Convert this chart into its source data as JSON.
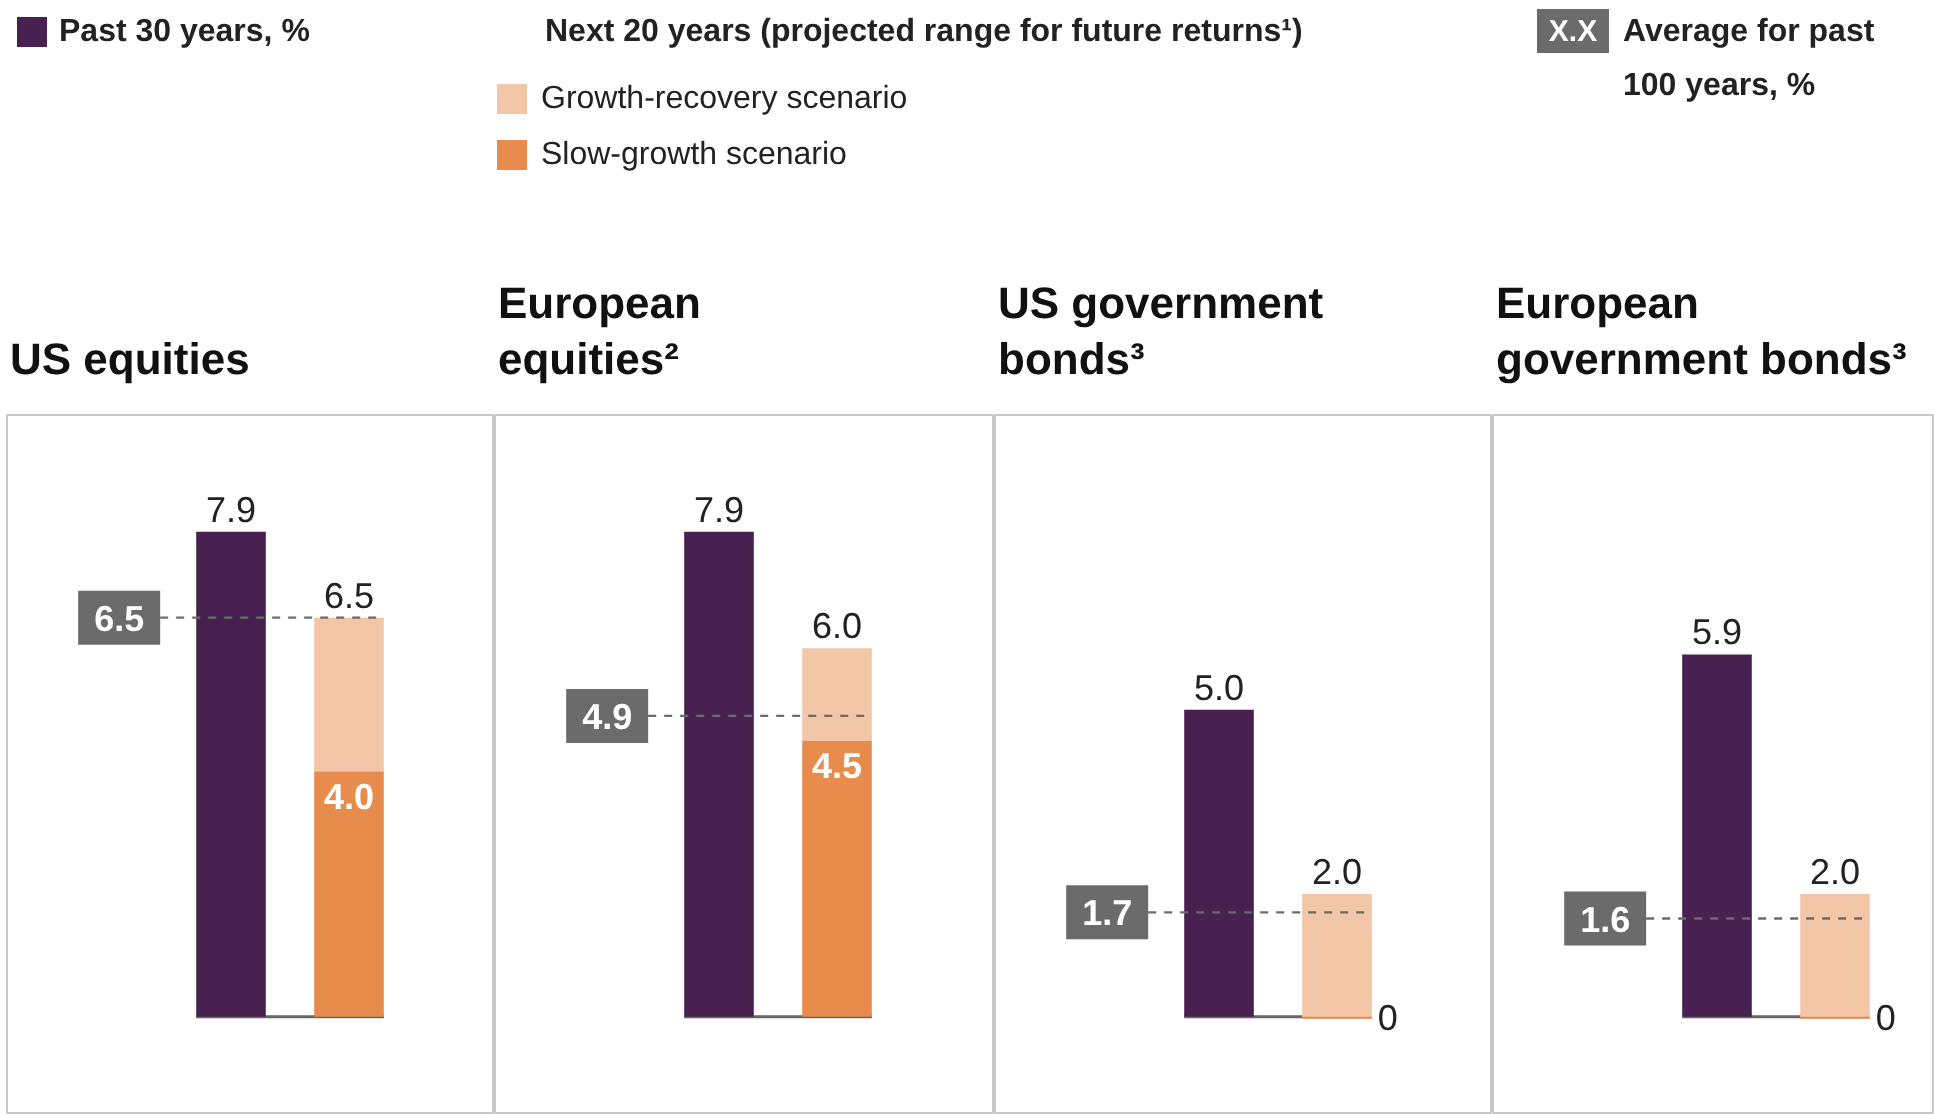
{
  "chart_data": [
    {
      "type": "bar",
      "title": "US equities",
      "categories": [
        null,
        null
      ],
      "stacked": true,
      "series": [
        {
          "name": "Past 30 years, %",
          "color": "#482151",
          "values": [
            7.9,
            null
          ],
          "value_labels": [
            "7.9",
            null
          ]
        },
        {
          "name": "Slow-growth scenario",
          "color": "#e88c4e",
          "values": [
            null,
            4.0
          ],
          "value_labels": [
            null,
            "4.0"
          ]
        },
        {
          "name": "Growth-recovery scenario",
          "color": "#f4c6a8",
          "values": [
            null,
            2.5
          ]
        }
      ],
      "totals": [
        null,
        "6.5"
      ],
      "ylim": [
        -1.6,
        9.8
      ],
      "tick_labels": false,
      "ref_lines": [
        {
          "axis": "y",
          "value": 6.5,
          "label": "6.5",
          "color": "#6b6b6b",
          "line_style": "dashed"
        }
      ],
      "legend": "top",
      "legend_title": "Next 20 years (projected range for future returns¹)",
      "annotations": [
        "X.X",
        "Average for past 100 years, %"
      ]
    },
    {
      "type": "bar",
      "title": "European equities²",
      "categories": [
        null,
        null
      ],
      "stacked": true,
      "series": [
        {
          "color": "#482151",
          "values": [
            7.9,
            null
          ],
          "value_labels": [
            "7.9",
            null
          ]
        },
        {
          "color": "#e88c4e",
          "values": [
            null,
            4.5
          ],
          "value_labels": [
            null,
            "4.5"
          ]
        },
        {
          "color": "#f4c6a8",
          "values": [
            null,
            1.5
          ]
        }
      ],
      "totals": [
        null,
        "6.0"
      ],
      "ylim": [
        -1.6,
        9.8
      ],
      "tick_labels": false,
      "ref_lines": [
        {
          "axis": "y",
          "value": 4.9,
          "label": "4.9",
          "color": "#6b6b6b",
          "line_style": "dashed"
        }
      ]
    },
    {
      "type": "bar",
      "title": "US government bonds³",
      "categories": [
        null,
        null
      ],
      "stacked": true,
      "series": [
        {
          "color": "#482151",
          "values": [
            5.0,
            null
          ],
          "value_labels": [
            "5.0",
            null
          ]
        },
        {
          "color": "#e88c4e",
          "values": [
            null,
            0
          ],
          "value_labels": [
            null,
            "0"
          ]
        },
        {
          "color": "#f4c6a8",
          "values": [
            null,
            2.0
          ]
        }
      ],
      "totals": [
        null,
        "2.0"
      ],
      "ylim": [
        -1.6,
        9.8
      ],
      "tick_labels": false,
      "ref_lines": [
        {
          "axis": "y",
          "value": 1.7,
          "label": "1.7",
          "color": "#6b6b6b",
          "line_style": "dashed"
        }
      ]
    },
    {
      "type": "bar",
      "title": "European government bonds³",
      "categories": [
        null,
        null
      ],
      "stacked": true,
      "series": [
        {
          "color": "#482151",
          "values": [
            5.9,
            null
          ],
          "value_labels": [
            "5.9",
            null
          ]
        },
        {
          "color": "#e88c4e",
          "values": [
            null,
            0
          ],
          "value_labels": [
            null,
            "0"
          ]
        },
        {
          "color": "#f4c6a8",
          "values": [
            null,
            2.0
          ]
        }
      ],
      "totals": [
        null,
        "2.0"
      ],
      "ylim": [
        -1.6,
        9.8
      ],
      "tick_labels": false,
      "ref_lines": [
        {
          "axis": "y",
          "value": 1.6,
          "label": "1.6",
          "color": "#6b6b6b",
          "line_style": "dashed"
        }
      ]
    }
  ]
}
